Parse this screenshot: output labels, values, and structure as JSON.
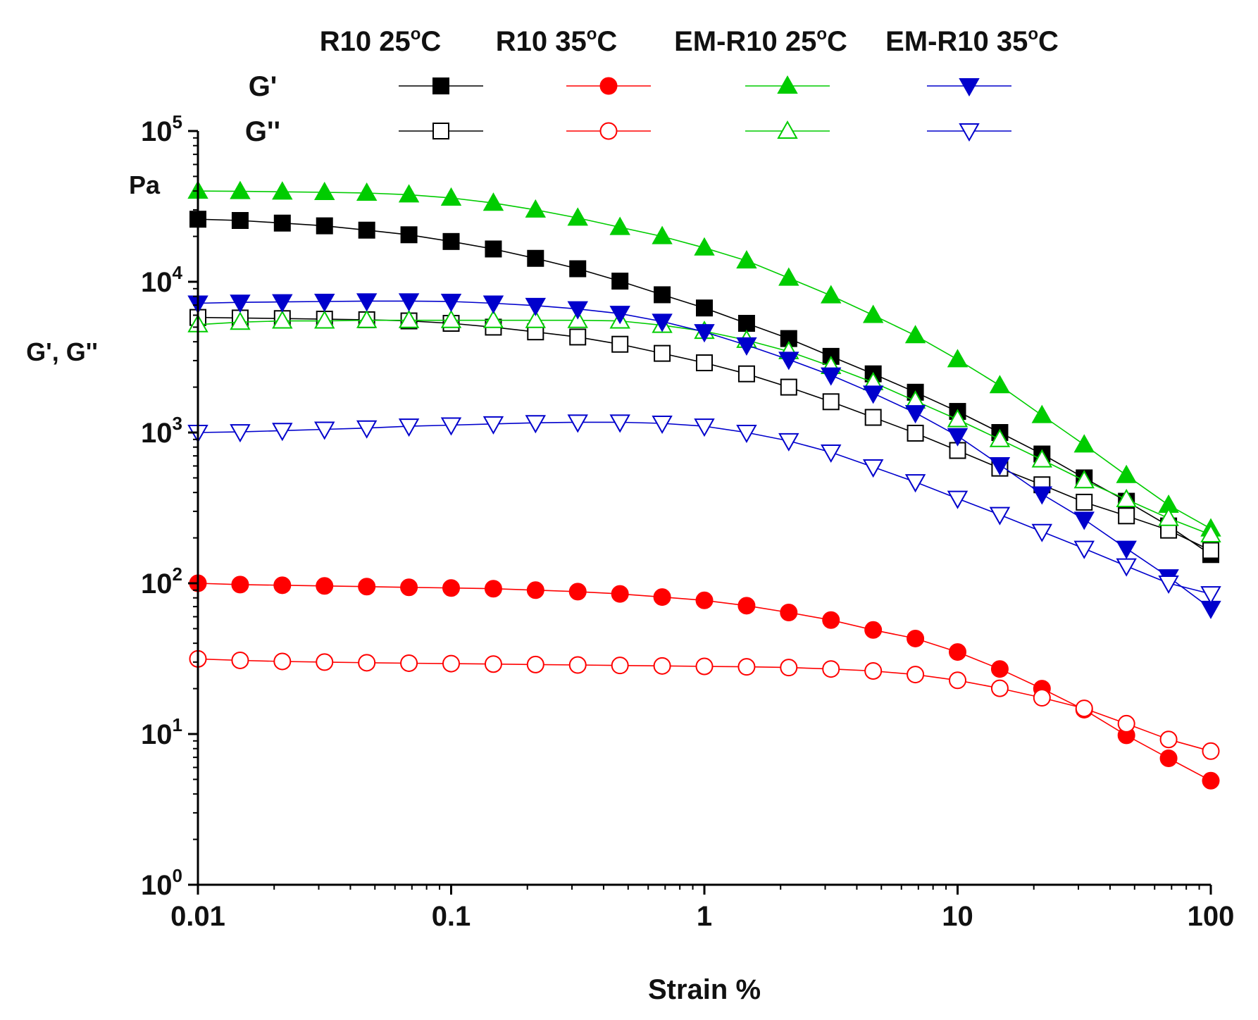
{
  "chart_data": {
    "type": "scatter",
    "title": "",
    "xlabel": "Strain %",
    "ylabel": "G', G''",
    "yunit": "Pa",
    "xscale": "log",
    "yscale": "log",
    "xlim": [
      0.01,
      100
    ],
    "ylim": [
      1,
      100000
    ],
    "grid": false,
    "legend_position": "top",
    "x_ticks": [
      {
        "value": 0.01,
        "label": "0.01"
      },
      {
        "value": 0.1,
        "label": "0.1"
      },
      {
        "value": 1,
        "label": "1"
      },
      {
        "value": 10,
        "label": "10"
      },
      {
        "value": 100,
        "label": "100"
      }
    ],
    "y_ticks": [
      {
        "value": 1,
        "base": "10",
        "exp": "0"
      },
      {
        "value": 10,
        "base": "10",
        "exp": "1"
      },
      {
        "value": 100,
        "base": "10",
        "exp": "2"
      },
      {
        "value": 1000,
        "base": "10",
        "exp": "3"
      },
      {
        "value": 10000,
        "base": "10",
        "exp": "4"
      },
      {
        "value": 100000,
        "base": "10",
        "exp": "5"
      }
    ],
    "legend": {
      "row_labels": [
        "G'",
        "G''"
      ],
      "sample_labels": [
        {
          "main": "R10 25",
          "sup": "o",
          "tail": "C"
        },
        {
          "main": "R10 35",
          "sup": "o",
          "tail": "C"
        },
        {
          "main": "EM-R10 25",
          "sup": "o",
          "tail": "C"
        },
        {
          "main": "EM-R10 35",
          "sup": "o",
          "tail": "C"
        }
      ]
    },
    "x": [
      0.01,
      0.01468,
      0.02154,
      0.03162,
      0.04642,
      0.06813,
      0.1,
      0.1468,
      0.2154,
      0.3162,
      0.4642,
      0.6813,
      1,
      1.468,
      2.154,
      3.162,
      4.642,
      6.813,
      10,
      14.68,
      21.54,
      31.62,
      46.42,
      68.13,
      100
    ],
    "series": [
      {
        "name": "R10 25°C G'",
        "color": "#000000",
        "marker": "square",
        "filled": true,
        "values": [
          26000,
          25500,
          24500,
          23500,
          22000,
          20500,
          18500,
          16500,
          14300,
          12200,
          10100,
          8200,
          6700,
          5300,
          4200,
          3200,
          2450,
          1850,
          1380,
          1000,
          720,
          500,
          350,
          240,
          155
        ]
      },
      {
        "name": "R10 25°C G''",
        "color": "#000000",
        "marker": "square",
        "filled": false,
        "values": [
          5800,
          5750,
          5700,
          5650,
          5600,
          5500,
          5300,
          5000,
          4650,
          4300,
          3850,
          3350,
          2900,
          2450,
          2000,
          1600,
          1260,
          990,
          760,
          580,
          450,
          345,
          280,
          225,
          165
        ]
      },
      {
        "name": "R10 35°C G'",
        "color": "#ff0000",
        "marker": "circle",
        "filled": true,
        "values": [
          100,
          98,
          97,
          96,
          95,
          94,
          93,
          92,
          90,
          88,
          85,
          81,
          77,
          71,
          64,
          57,
          49,
          43,
          35,
          27,
          20,
          14.5,
          9.8,
          6.9,
          4.9
        ]
      },
      {
        "name": "R10 35°C G''",
        "color": "#ff0000",
        "marker": "circle",
        "filled": false,
        "values": [
          31.5,
          30.8,
          30.3,
          30,
          29.7,
          29.5,
          29.3,
          29.1,
          28.9,
          28.7,
          28.5,
          28.3,
          28.1,
          27.9,
          27.6,
          27,
          26.2,
          24.8,
          22.7,
          20.1,
          17.4,
          14.8,
          11.7,
          9.2,
          7.7
        ]
      },
      {
        "name": "EM-R10 25°C G'",
        "color": "#00cc00",
        "marker": "triangle-up",
        "filled": true,
        "values": [
          40000,
          39800,
          39500,
          39200,
          38800,
          37800,
          36000,
          33300,
          30000,
          26500,
          23000,
          20000,
          16800,
          13800,
          10600,
          8100,
          6000,
          4400,
          3050,
          2050,
          1300,
          830,
          520,
          330,
          230
        ]
      },
      {
        "name": "EM-R10 25°C G''",
        "color": "#00cc00",
        "marker": "triangle-up",
        "filled": false,
        "values": [
          5200,
          5400,
          5500,
          5500,
          5550,
          5550,
          5550,
          5550,
          5550,
          5550,
          5500,
          5150,
          4700,
          4100,
          3450,
          2750,
          2150,
          1620,
          1220,
          900,
          660,
          480,
          360,
          270,
          210
        ]
      },
      {
        "name": "EM-R10 35°C G'",
        "color": "#0000cc",
        "marker": "triangle-down",
        "filled": true,
        "values": [
          7200,
          7300,
          7350,
          7400,
          7450,
          7450,
          7400,
          7200,
          6950,
          6600,
          6150,
          5450,
          4650,
          3800,
          3050,
          2400,
          1820,
          1350,
          950,
          610,
          390,
          265,
          170,
          110,
          68
        ]
      },
      {
        "name": "EM-R10 35°C G''",
        "color": "#0000cc",
        "marker": "triangle-down",
        "filled": false,
        "values": [
          1000,
          1010,
          1030,
          1050,
          1070,
          1100,
          1120,
          1140,
          1160,
          1170,
          1170,
          1150,
          1100,
          1000,
          880,
          740,
          590,
          470,
          365,
          285,
          220,
          170,
          130,
          100,
          85
        ]
      }
    ]
  }
}
